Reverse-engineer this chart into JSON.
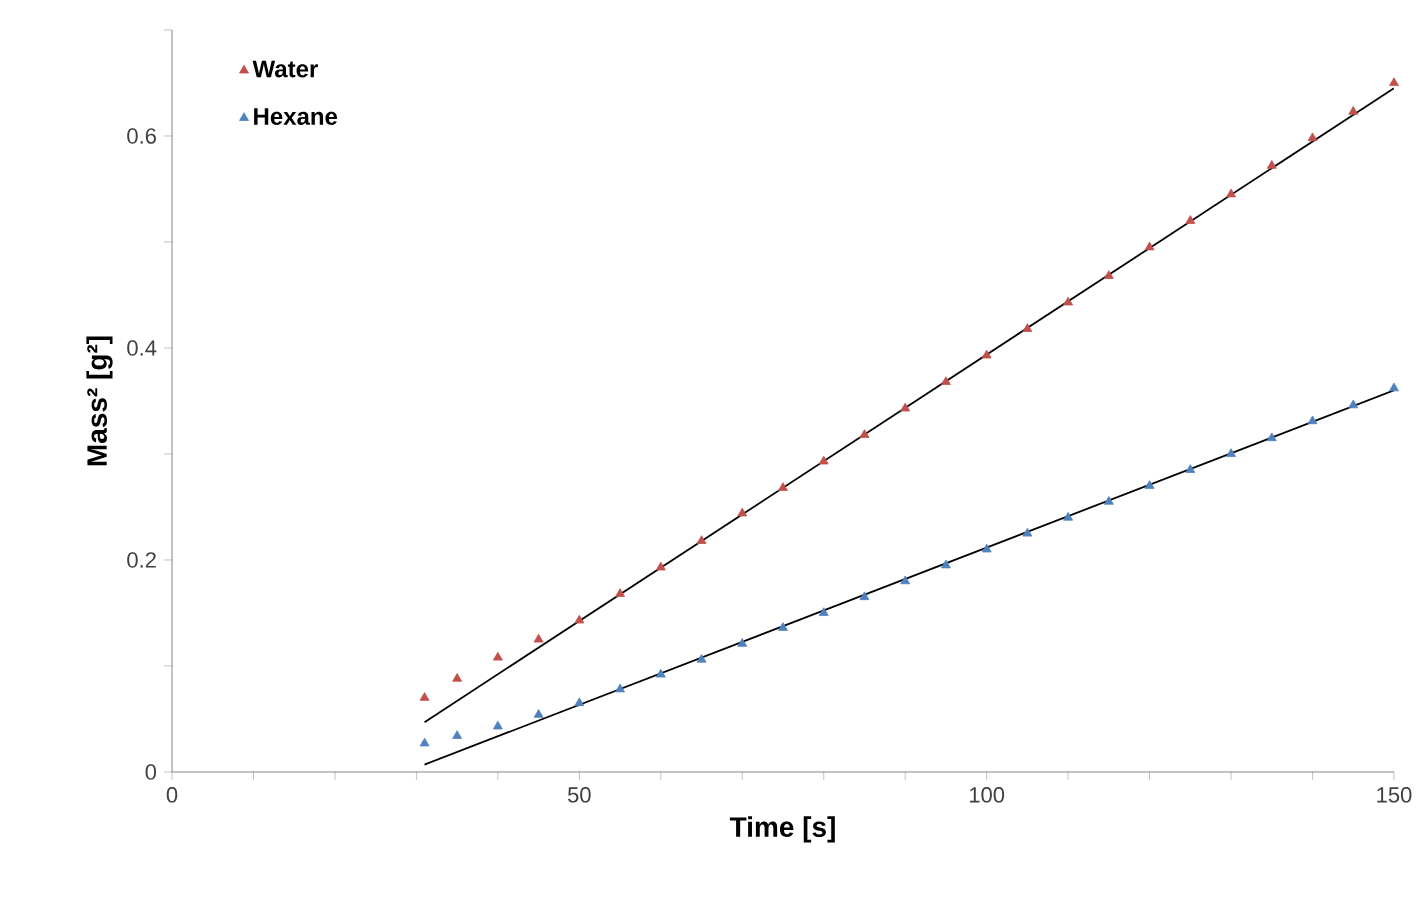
{
  "chart_data": {
    "type": "scatter",
    "xlabel": "Time [s]",
    "ylabel": "Mass² [g²]",
    "xlim": [
      0,
      150
    ],
    "ylim": [
      0,
      0.7
    ],
    "xticks": [
      0,
      {
        "value": 10,
        "label": null
      },
      {
        "value": 20,
        "label": null
      },
      {
        "value": 30,
        "label": null
      },
      {
        "value": 40,
        "label": null
      },
      50,
      {
        "value": 60,
        "label": null
      },
      {
        "value": 70,
        "label": null
      },
      {
        "value": 80,
        "label": null
      },
      {
        "value": 90,
        "label": null
      },
      100,
      {
        "value": 110,
        "label": null
      },
      {
        "value": 120,
        "label": null
      },
      {
        "value": 130,
        "label": null
      },
      {
        "value": 140,
        "label": null
      },
      150
    ],
    "yticks": [
      0,
      {
        "value": 0.1,
        "label": null
      },
      0.2,
      {
        "value": 0.3,
        "label": null
      },
      0.4,
      {
        "value": 0.5,
        "label": null
      },
      0.6,
      {
        "value": 0.7,
        "label": null
      }
    ],
    "legend": "top left",
    "grid": false,
    "x": [
      31,
      35,
      40,
      45,
      50,
      55,
      60,
      65,
      70,
      75,
      80,
      85,
      90,
      95,
      100,
      105,
      110,
      115,
      120,
      125,
      130,
      135,
      140,
      145,
      150
    ],
    "series": [
      {
        "name": "Water",
        "color": "#c0504d",
        "marker": "triangle",
        "values": [
          0.07,
          0.088,
          0.108,
          0.125,
          0.143,
          0.168,
          0.193,
          0.218,
          0.244,
          0.268,
          0.293,
          0.318,
          0.343,
          0.368,
          0.393,
          0.418,
          0.443,
          0.468,
          0.495,
          0.52,
          0.545,
          0.572,
          0.598,
          0.623,
          0.65
        ]
      },
      {
        "name": "Hexane",
        "color": "#4f81bd",
        "marker": "triangle",
        "values": [
          0.027,
          0.034,
          0.043,
          0.054,
          0.065,
          0.078,
          0.092,
          0.106,
          0.121,
          0.136,
          0.15,
          0.165,
          0.18,
          0.195,
          0.21,
          0.225,
          0.24,
          0.255,
          0.27,
          0.285,
          0.3,
          0.315,
          0.331,
          0.346,
          0.362
        ]
      },
      {
        "type": "line",
        "color": "#000000",
        "marker": "none",
        "values": [
          0.047,
          null,
          null,
          null,
          null,
          null,
          null,
          null,
          null,
          null,
          null,
          null,
          null,
          null,
          null,
          null,
          null,
          null,
          null,
          null,
          null,
          null,
          null,
          null,
          0.645
        ]
      },
      {
        "type": "line",
        "color": "#000000",
        "marker": "none",
        "values": [
          0.007,
          null,
          null,
          null,
          null,
          null,
          null,
          null,
          null,
          null,
          null,
          null,
          null,
          null,
          null,
          null,
          null,
          null,
          null,
          null,
          null,
          null,
          null,
          null,
          0.36
        ]
      }
    ]
  }
}
